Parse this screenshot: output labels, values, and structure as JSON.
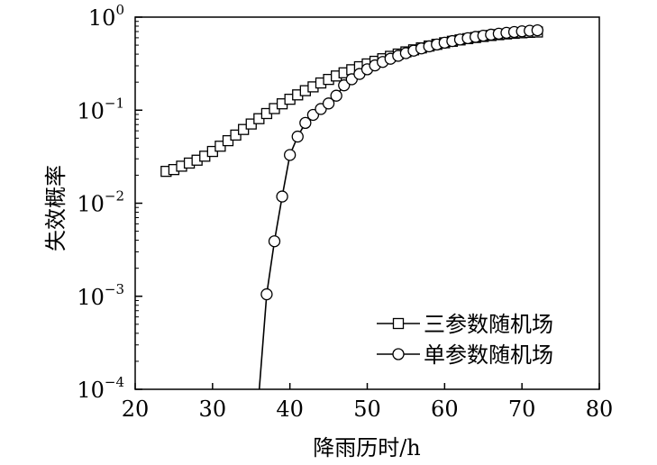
{
  "chart_data": {
    "type": "line",
    "title": "",
    "xlabel": "降雨历时/h",
    "ylabel": "失效概率",
    "xlim": [
      20,
      80
    ],
    "ylim": [
      0.0001,
      1
    ],
    "yscale": "log",
    "grid": false,
    "legend_position": "bottom-right",
    "x_ticks": [
      "20",
      "30",
      "40",
      "50",
      "60",
      "70",
      "80"
    ],
    "y_ticks": [
      {
        "value": 0.0001,
        "base": "10",
        "exp": "−4"
      },
      {
        "value": 0.001,
        "base": "10",
        "exp": "−3"
      },
      {
        "value": 0.01,
        "base": "10",
        "exp": "−2"
      },
      {
        "value": 0.1,
        "base": "10",
        "exp": "−1"
      },
      {
        "value": 1,
        "base": "10",
        "exp": "0"
      }
    ],
    "series": [
      {
        "name": "三参数随机场",
        "marker": "square",
        "x": [
          24,
          25,
          26,
          27,
          28,
          29,
          30,
          31,
          32,
          33,
          34,
          35,
          36,
          37,
          38,
          39,
          40,
          41,
          42,
          43,
          44,
          45,
          46,
          47,
          48,
          49,
          50,
          51,
          52,
          53,
          54,
          55,
          56,
          57,
          58,
          59,
          60,
          61,
          62,
          63,
          64,
          65,
          66,
          67,
          68,
          69,
          70,
          71,
          72
        ],
        "y": [
          0.022,
          0.023,
          0.025,
          0.027,
          0.029,
          0.032,
          0.036,
          0.041,
          0.047,
          0.054,
          0.062,
          0.071,
          0.081,
          0.092,
          0.104,
          0.117,
          0.131,
          0.146,
          0.162,
          0.178,
          0.196,
          0.214,
          0.233,
          0.252,
          0.272,
          0.293,
          0.314,
          0.335,
          0.357,
          0.379,
          0.401,
          0.423,
          0.445,
          0.467,
          0.489,
          0.51,
          0.53,
          0.55,
          0.569,
          0.587,
          0.604,
          0.62,
          0.635,
          0.648,
          0.66,
          0.67,
          0.679,
          0.686,
          0.692
        ]
      },
      {
        "name": "单参数随机场",
        "marker": "circle",
        "x": [
          36,
          37,
          38,
          39,
          40,
          41,
          42,
          43,
          44,
          45,
          46,
          47,
          48,
          49,
          50,
          51,
          52,
          53,
          54,
          55,
          56,
          57,
          58,
          59,
          60,
          61,
          62,
          63,
          64,
          65,
          66,
          67,
          68,
          69,
          70,
          71,
          72
        ],
        "y": [
          9e-05,
          0.00105,
          0.0039,
          0.0118,
          0.033,
          0.052,
          0.073,
          0.089,
          0.103,
          0.118,
          0.143,
          0.185,
          0.215,
          0.245,
          0.275,
          0.303,
          0.33,
          0.357,
          0.384,
          0.41,
          0.436,
          0.461,
          0.485,
          0.508,
          0.531,
          0.553,
          0.574,
          0.594,
          0.613,
          0.631,
          0.648,
          0.664,
          0.679,
          0.692,
          0.704,
          0.714,
          0.722
        ]
      }
    ]
  }
}
